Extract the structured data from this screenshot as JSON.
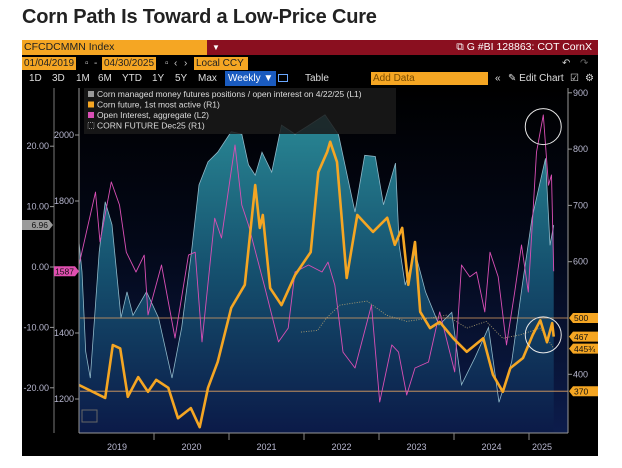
{
  "title": "Corn Path Is Toward a Low-Price Cure",
  "terminal": {
    "ticker": "CFCDCMMN Index",
    "ticker_dropdown_icon": "filter-dropdown-icon",
    "graph_title": "G #BI 128863: COT CornX",
    "start_date": "01/04/2019",
    "end_date": "04/30/2025",
    "currency": "Local CCY",
    "ranges": [
      "1D",
      "3D",
      "1M",
      "6M",
      "YTD",
      "1Y",
      "5Y",
      "Max"
    ],
    "frequency": "Weekly ▼",
    "table_label": "Table",
    "add_data_placeholder": "Add Data",
    "edit_chart_label": "Edit Chart",
    "colors": {
      "accent": "#f5a623",
      "header_red": "#8a0f1f",
      "weekly_blue": "#1a5bbf"
    }
  },
  "chart_data": {
    "type": "line",
    "x_axis": {
      "type": "date",
      "range": [
        "2019-01-04",
        "2025-04-30"
      ],
      "tick_labels": [
        "2019",
        "2020",
        "2021",
        "2022",
        "2023",
        "2024",
        "2025"
      ]
    },
    "axes": {
      "L1": {
        "range": [
          -25,
          28
        ],
        "ticks": [
          "20.00",
          "10.00",
          "0.00",
          "-10.00",
          "-20.00"
        ]
      },
      "L2": {
        "range": [
          1100,
          2100
        ],
        "ticks": [
          "2000",
          "1800",
          "1400",
          "1200"
        ]
      },
      "R1": {
        "range": [
          290,
          910
        ],
        "ticks": [
          "900",
          "800",
          "700",
          "600",
          "400"
        ]
      }
    },
    "legend_position": "top-left",
    "horizontal_lines_R1": [
      500,
      370
    ],
    "series": [
      {
        "name": "Corn managed money futures positions / open interest on 4/22/25 (L1)",
        "axis": "L1",
        "style": "area",
        "color": "#1f7486",
        "last_label": "6.96",
        "x": [
          2019.0,
          2019.04,
          2019.09,
          2019.15,
          2019.27,
          2019.35,
          2019.44,
          2019.56,
          2019.64,
          2019.72,
          2019.9,
          2020.06,
          2020.24,
          2020.37,
          2020.5,
          2020.6,
          2020.72,
          2020.85,
          2021.03,
          2021.17,
          2021.26,
          2021.35,
          2021.44,
          2021.57,
          2021.7,
          2021.88,
          2022.07,
          2022.28,
          2022.46,
          2022.68,
          2022.81,
          2022.95,
          2023.06,
          2023.22,
          2023.27,
          2023.35,
          2023.48,
          2023.62,
          2023.8,
          2023.97,
          2024.1,
          2024.28,
          2024.46,
          2024.6,
          2024.77,
          2024.91,
          2025.04,
          2025.22,
          2025.28,
          2025.33
        ],
        "y": [
          4.1,
          -0.8,
          -14,
          -18.4,
          2.5,
          10.8,
          7,
          -8.4,
          -4.1,
          -8,
          -4.1,
          -8.4,
          -18.4,
          -10,
          2.5,
          13.6,
          17.4,
          19,
          22.4,
          22,
          16.9,
          15.2,
          19,
          15.7,
          23.5,
          22,
          23.5,
          25.2,
          21.9,
          9.1,
          18.5,
          18.3,
          10.3,
          17.2,
          3.6,
          -3,
          2.5,
          -4.1,
          -9.6,
          -7.5,
          -19.5,
          -15,
          -10,
          -22.4,
          -15.7,
          -3,
          8.1,
          18,
          3.6,
          6.96
        ]
      },
      {
        "name": "Corn future, 1st most active (R1)",
        "axis": "R1",
        "style": "line",
        "color": "#f5a623",
        "last_label": "467",
        "x": [
          2019.0,
          2019.35,
          2019.45,
          2019.55,
          2019.65,
          2019.79,
          2019.92,
          2020.03,
          2020.19,
          2020.32,
          2020.49,
          2020.61,
          2020.72,
          2020.85,
          2021.03,
          2021.21,
          2021.35,
          2021.41,
          2021.45,
          2021.55,
          2021.7,
          2021.88,
          2022.09,
          2022.19,
          2022.31,
          2022.35,
          2022.44,
          2022.57,
          2022.71,
          2022.92,
          2023.11,
          2023.21,
          2023.31,
          2023.39,
          2023.48,
          2023.55,
          2023.68,
          2023.81,
          2023.99,
          2024.17,
          2024.39,
          2024.52,
          2024.65,
          2024.75,
          2024.92,
          2025.05,
          2025.15,
          2025.24,
          2025.31,
          2025.33
        ],
        "y": [
          381,
          358,
          452,
          446,
          360,
          395,
          369,
          390,
          376,
          322,
          340,
          306,
          376,
          422,
          518,
          559,
          736,
          660,
          683,
          553,
          523,
          576,
          617,
          759,
          795,
          813,
          777,
          571,
          683,
          653,
          678,
          630,
          660,
          559,
          635,
          511,
          482,
          493,
          464,
          440,
          464,
          399,
          369,
          411,
          429,
          470,
          496,
          457,
          491,
          467
        ]
      },
      {
        "name": "Open Interest, aggregate (L2)",
        "axis": "L2",
        "style": "line",
        "color": "#d94fb5",
        "last_label": "1587",
        "x": [
          2019.0,
          2019.12,
          2019.22,
          2019.28,
          2019.43,
          2019.54,
          2019.63,
          2019.76,
          2019.87,
          2019.92,
          2020.1,
          2020.28,
          2020.46,
          2020.55,
          2020.64,
          2020.81,
          2020.9,
          2021.08,
          2021.17,
          2021.26,
          2021.48,
          2021.66,
          2021.79,
          2021.88,
          2022.06,
          2022.24,
          2022.32,
          2022.41,
          2022.52,
          2022.68,
          2022.9,
          2023.01,
          2023.17,
          2023.26,
          2023.37,
          2023.48,
          2023.66,
          2023.81,
          2024.01,
          2024.1,
          2024.21,
          2024.3,
          2024.41,
          2024.48,
          2024.59,
          2024.7,
          2024.81,
          2024.9,
          2024.99,
          2025.1,
          2025.19,
          2025.26,
          2025.3,
          2025.33
        ],
        "y": [
          1606,
          1727,
          1827,
          1676,
          1858,
          1788,
          1645,
          1585,
          1636,
          1455,
          1606,
          1385,
          1636,
          1645,
          1373,
          1748,
          1688,
          1970,
          1788,
          1727,
          1536,
          1373,
          1415,
          1585,
          1606,
          1585,
          1615,
          1545,
          1342,
          1294,
          1485,
          1191,
          1364,
          1342,
          1212,
          1294,
          1312,
          1464,
          1282,
          1606,
          1570,
          1585,
          1464,
          1645,
          1570,
          1364,
          1524,
          1667,
          1524,
          1948,
          2061,
          1848,
          1879,
          1587
        ]
      },
      {
        "name": "CORN FUTURE Dec25 (R1)",
        "axis": "R1",
        "style": "dotted",
        "color": "#a89a70",
        "last_label": "445¾",
        "x": [
          2021.96,
          2022.18,
          2022.3,
          2022.48,
          2022.84,
          2023.1,
          2023.37,
          2023.68,
          2023.9,
          2024.17,
          2024.43,
          2024.65,
          2024.88,
          2025.15,
          2025.33
        ],
        "y": [
          475,
          478,
          500,
          523,
          530,
          505,
          494,
          500,
          505,
          482,
          494,
          464,
          470,
          482,
          445.75
        ]
      }
    ],
    "line_labels_R1": [
      "500",
      "370"
    ],
    "annotations": [
      {
        "type": "circle",
        "target": "Open Interest peak",
        "x": 2025.19,
        "axis": "R1",
        "y": 840
      },
      {
        "type": "circle",
        "target": "Corn future recent range",
        "x": 2025.19,
        "axis": "R1",
        "y": 470
      }
    ]
  }
}
